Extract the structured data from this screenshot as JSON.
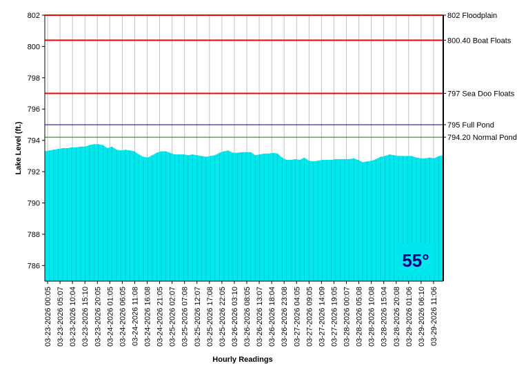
{
  "chart_data": {
    "type": "area",
    "xlabel": "Hourly Readings",
    "ylabel": "Lake Level (ft.)",
    "ylim": [
      785,
      802
    ],
    "y_ticks": [
      "786",
      "788",
      "790",
      "792",
      "794",
      "796",
      "798",
      "800",
      "802"
    ],
    "x_tick_labels": [
      "03-23-2026 00:05",
      "03-23-2026 05:07",
      "03-23-2026 10:04",
      "03-23-2026 15:10",
      "03-23-2026 20:05",
      "03-24-2026 01:05",
      "03-24-2026 06:05",
      "03-24-2026 11:08",
      "03-24-2026 16:08",
      "03-24-2026 21:05",
      "03-25-2026 02:07",
      "03-25-2026 07:08",
      "03-25-2026 12:07",
      "03-25-2026 17:08",
      "03-25-2026 22:05",
      "03-26-2026 03:10",
      "03-26-2026 08:05",
      "03-26-2026 13:07",
      "03-26-2026 18:04",
      "03-26-2026 23:08",
      "03-27-2026 04:05",
      "03-27-2026 09:05",
      "03-27-2026 14:09",
      "03-27-2026 19:05",
      "03-28-2026 00:07",
      "03-28-2026 05:08",
      "03-28-2026 10:08",
      "03-28-2026 15:04",
      "03-28-2026 20:08",
      "03-29-2026 01:06",
      "03-29-2026 06:10",
      "03-29-2026 11:06"
    ],
    "series": [
      {
        "values": [
          793.3,
          793.35,
          793.4,
          793.45,
          793.5,
          793.5,
          793.55,
          793.55,
          793.6,
          793.6,
          793.7,
          793.75,
          793.75,
          793.7,
          793.5,
          793.6,
          793.4,
          793.35,
          793.4,
          793.35,
          793.3,
          793.1,
          792.95,
          792.9,
          793.05,
          793.2,
          793.3,
          793.3,
          793.2,
          793.1,
          793.1,
          793.1,
          793.05,
          793.1,
          793.05,
          793.0,
          792.95,
          793.0,
          793.05,
          793.2,
          793.3,
          793.35,
          793.2,
          793.2,
          793.25,
          793.25,
          793.25,
          793.05,
          793.1,
          793.15,
          793.15,
          793.2,
          793.15,
          792.9,
          792.75,
          792.75,
          792.8,
          792.75,
          792.9,
          792.7,
          792.65,
          792.7,
          792.75,
          792.75,
          792.75,
          792.8,
          792.8,
          792.8,
          792.8,
          792.85,
          792.75,
          792.6,
          792.65,
          792.7,
          792.8,
          792.95,
          793.0,
          793.1,
          793.05,
          793.0,
          793.0,
          793.0,
          793.0,
          792.9,
          792.85,
          792.85,
          792.9,
          792.85,
          793.0,
          793.05
        ],
        "color": "#00e8ee"
      }
    ],
    "reference_lines": [
      {
        "value": 802,
        "label": "802 Floodplain",
        "color": "#ff0000"
      },
      {
        "value": 800.4,
        "label": "800.40 Boat Floats",
        "color": "#ff0000"
      },
      {
        "value": 797,
        "label": "797 Sea Doo Floats",
        "color": "#ff0000"
      },
      {
        "value": 795,
        "label": "795 Full Pond",
        "color": "#000080"
      },
      {
        "value": 794.2,
        "label": "794.20 Normal Pond",
        "color": "#008000"
      }
    ],
    "grid": "vertical",
    "temperature": {
      "label": "55°",
      "color": "#000080",
      "background": "#00e8ee"
    }
  }
}
